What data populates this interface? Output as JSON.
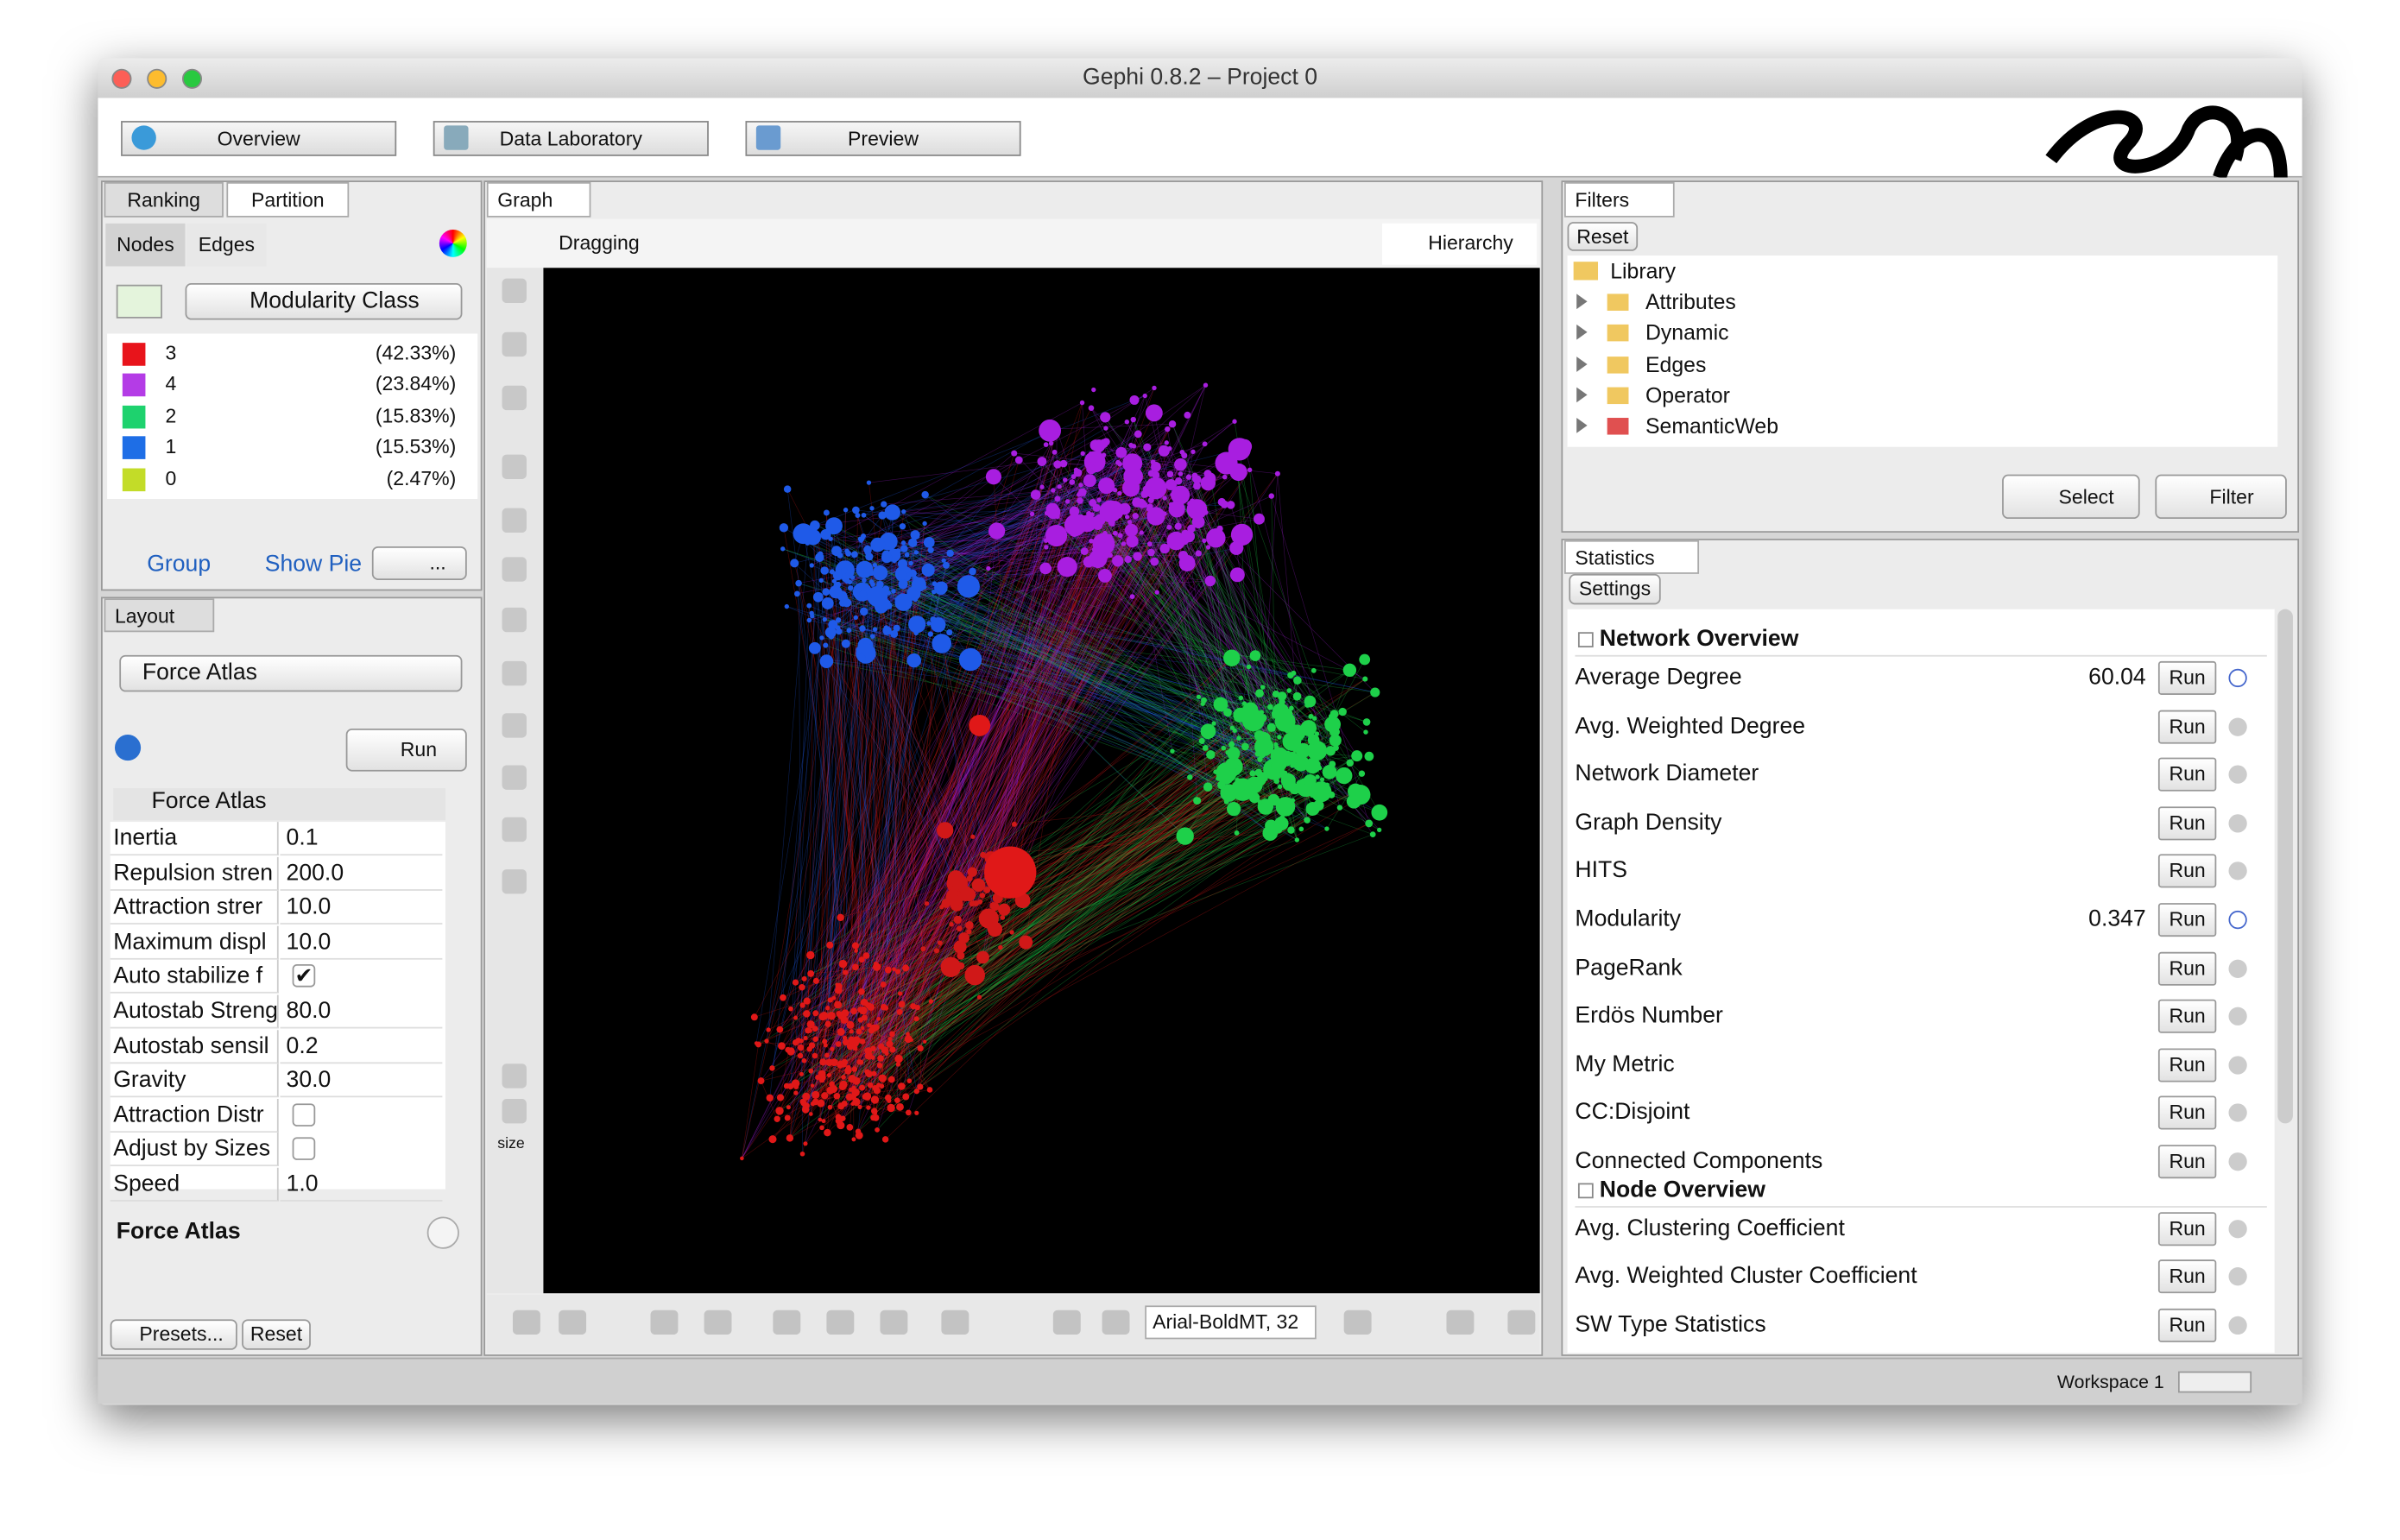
{
  "window": {
    "title": "Gephi 0.8.2 – Project 0"
  },
  "toolbar": {
    "tabs": [
      "Overview",
      "Data Laboratory",
      "Preview"
    ]
  },
  "partition_panel": {
    "tabs": [
      "Ranking",
      "Partition"
    ],
    "subtabs": [
      "Nodes",
      "Edges"
    ],
    "attribute": "Modularity Class",
    "classes": [
      {
        "label": "3",
        "percent": "(42.33%)",
        "color": "#e8141b"
      },
      {
        "label": "4",
        "percent": "(23.84%)",
        "color": "#b43ce6"
      },
      {
        "label": "2",
        "percent": "(15.83%)",
        "color": "#1ed26e"
      },
      {
        "label": "1",
        "percent": "(15.53%)",
        "color": "#1e6ee6"
      },
      {
        "label": "0",
        "percent": "(2.47%)",
        "color": "#c3dc28"
      }
    ],
    "actions": [
      "Group",
      "Show Pie",
      "..."
    ]
  },
  "layout_panel": {
    "tab": "Layout",
    "algorithm": "Force Atlas",
    "run": "Run",
    "section": "Force Atlas",
    "properties": [
      {
        "name": "Inertia",
        "value": "0.1"
      },
      {
        "name": "Repulsion stren",
        "value": "200.0"
      },
      {
        "name": "Attraction strer",
        "value": "10.0"
      },
      {
        "name": "Maximum displ",
        "value": "10.0"
      },
      {
        "name": "Auto stabilize f",
        "checked": true
      },
      {
        "name": "Autostab Streng",
        "value": "80.0"
      },
      {
        "name": "Autostab sensil",
        "value": "0.2"
      },
      {
        "name": "Gravity",
        "value": "30.0"
      },
      {
        "name": "Attraction Distr",
        "checked": false
      },
      {
        "name": "Adjust by Sizes",
        "checked": false
      },
      {
        "name": "Speed",
        "value": "1.0"
      }
    ],
    "description_title": "Force Atlas",
    "buttons": [
      "Presets...",
      "Reset"
    ]
  },
  "graph_panel": {
    "tab": "Graph",
    "mode": "Dragging",
    "hierarchy": "Hierarchy",
    "size_label": "size",
    "font": "Arial-BoldMT, 32"
  },
  "filters_panel": {
    "tab": "Filters",
    "reset": "Reset",
    "library": "Library",
    "items": [
      "Attributes",
      "Dynamic",
      "Edges",
      "Operator",
      "SemanticWeb"
    ],
    "buttons": [
      "Select",
      "Filter"
    ]
  },
  "statistics_panel": {
    "tab": "Statistics",
    "settings": "Settings",
    "sections": [
      {
        "title": "Network Overview",
        "rows": [
          {
            "name": "Average Degree",
            "value": "60.04",
            "action": "Run"
          },
          {
            "name": "Avg. Weighted Degree",
            "action": "Run"
          },
          {
            "name": "Network Diameter",
            "action": "Run"
          },
          {
            "name": "Graph Density",
            "action": "Run"
          },
          {
            "name": "HITS",
            "action": "Run"
          },
          {
            "name": "Modularity",
            "value": "0.347",
            "action": "Run"
          },
          {
            "name": "PageRank",
            "action": "Run"
          },
          {
            "name": "Erdös Number",
            "action": "Run"
          },
          {
            "name": "My Metric",
            "action": "Run"
          },
          {
            "name": "CC:Disjoint",
            "action": "Run"
          },
          {
            "name": "Connected Components",
            "action": "Run"
          }
        ]
      },
      {
        "title": "Node Overview",
        "rows": [
          {
            "name": "Avg. Clustering Coefficient",
            "action": "Run"
          },
          {
            "name": "Avg. Weighted Cluster Coefficient",
            "action": "Run"
          },
          {
            "name": "SW Type Statistics",
            "action": "Run"
          }
        ]
      }
    ]
  },
  "status_bar": {
    "workspace": "Workspace 1"
  }
}
